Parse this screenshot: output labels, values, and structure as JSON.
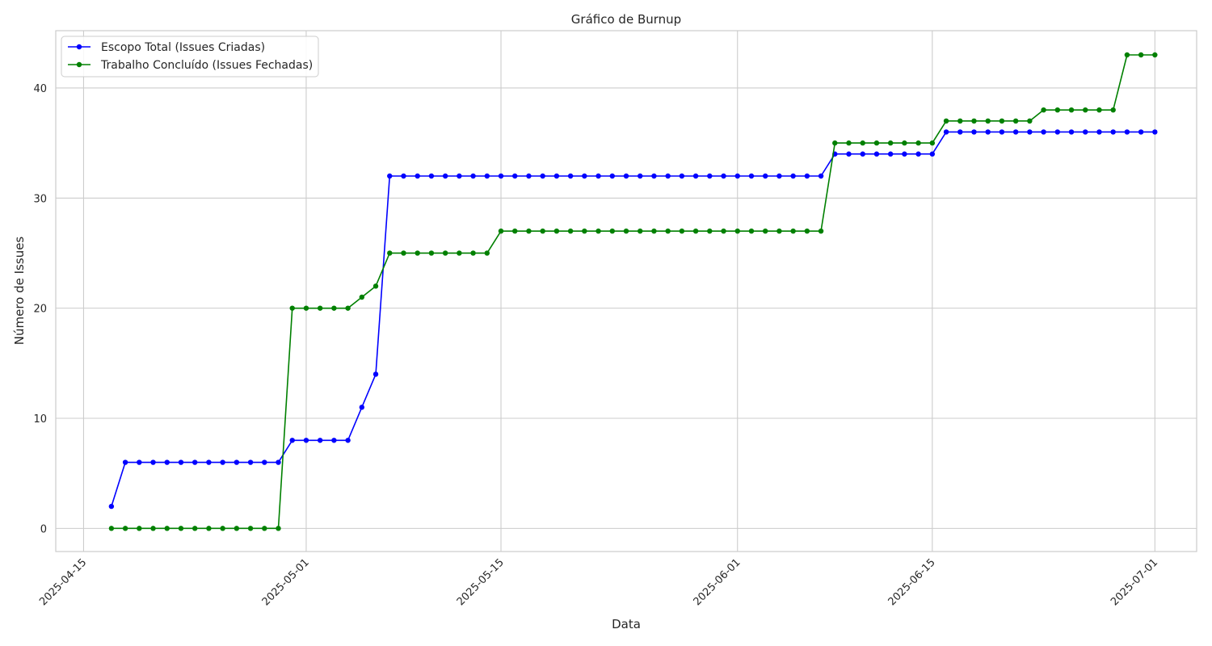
{
  "chart_data": {
    "type": "line",
    "title": "Gráfico de Burnup",
    "xlabel": "Data",
    "ylabel": "Número de Issues",
    "x_type": "date",
    "xlim": [
      "2025-04-13",
      "2025-07-04"
    ],
    "ylim": [
      -2.1,
      45.2
    ],
    "x_ticks": [
      "2025-04-15",
      "2025-05-01",
      "2025-05-15",
      "2025-06-01",
      "2025-06-15",
      "2025-07-01"
    ],
    "y_ticks": [
      0,
      10,
      20,
      30,
      40
    ],
    "grid": true,
    "legend_position": "top-left",
    "dates": [
      "2025-04-17",
      "2025-04-18",
      "2025-04-19",
      "2025-04-20",
      "2025-04-21",
      "2025-04-22",
      "2025-04-23",
      "2025-04-24",
      "2025-04-25",
      "2025-04-26",
      "2025-04-27",
      "2025-04-28",
      "2025-04-29",
      "2025-04-30",
      "2025-05-01",
      "2025-05-02",
      "2025-05-03",
      "2025-05-04",
      "2025-05-05",
      "2025-05-06",
      "2025-05-07",
      "2025-05-08",
      "2025-05-09",
      "2025-05-10",
      "2025-05-11",
      "2025-05-12",
      "2025-05-13",
      "2025-05-14",
      "2025-05-15",
      "2025-05-16",
      "2025-05-17",
      "2025-05-18",
      "2025-05-19",
      "2025-05-20",
      "2025-05-21",
      "2025-05-22",
      "2025-05-23",
      "2025-05-24",
      "2025-05-25",
      "2025-05-26",
      "2025-05-27",
      "2025-05-28",
      "2025-05-29",
      "2025-05-30",
      "2025-05-31",
      "2025-06-01",
      "2025-06-02",
      "2025-06-03",
      "2025-06-04",
      "2025-06-05",
      "2025-06-06",
      "2025-06-07",
      "2025-06-08",
      "2025-06-09",
      "2025-06-10",
      "2025-06-11",
      "2025-06-12",
      "2025-06-13",
      "2025-06-14",
      "2025-06-15",
      "2025-06-16",
      "2025-06-17",
      "2025-06-18",
      "2025-06-19",
      "2025-06-20",
      "2025-06-21",
      "2025-06-22",
      "2025-06-23",
      "2025-06-24",
      "2025-06-25",
      "2025-06-26",
      "2025-06-27",
      "2025-06-28",
      "2025-06-29",
      "2025-06-30",
      "2025-07-01"
    ],
    "series": [
      {
        "name": "Escopo Total (Issues Criadas)",
        "color": "#0000ff",
        "values": [
          2,
          6,
          6,
          6,
          6,
          6,
          6,
          6,
          6,
          6,
          6,
          6,
          6,
          8,
          8,
          8,
          8,
          8,
          11,
          14,
          32,
          32,
          32,
          32,
          32,
          32,
          32,
          32,
          32,
          32,
          32,
          32,
          32,
          32,
          32,
          32,
          32,
          32,
          32,
          32,
          32,
          32,
          32,
          32,
          32,
          32,
          32,
          32,
          32,
          32,
          32,
          32,
          34,
          34,
          34,
          34,
          34,
          34,
          34,
          34,
          36,
          36,
          36,
          36,
          36,
          36,
          36,
          36,
          36,
          36,
          36,
          36,
          36,
          36,
          36,
          36
        ]
      },
      {
        "name": "Trabalho Concluído (Issues Fechadas)",
        "color": "#008000",
        "values": [
          0,
          0,
          0,
          0,
          0,
          0,
          0,
          0,
          0,
          0,
          0,
          0,
          0,
          20,
          20,
          20,
          20,
          20,
          21,
          22,
          25,
          25,
          25,
          25,
          25,
          25,
          25,
          25,
          27,
          27,
          27,
          27,
          27,
          27,
          27,
          27,
          27,
          27,
          27,
          27,
          27,
          27,
          27,
          27,
          27,
          27,
          27,
          27,
          27,
          27,
          27,
          27,
          35,
          35,
          35,
          35,
          35,
          35,
          35,
          35,
          37,
          37,
          37,
          37,
          37,
          37,
          37,
          38,
          38,
          38,
          38,
          38,
          38,
          43,
          43,
          43
        ]
      }
    ]
  }
}
